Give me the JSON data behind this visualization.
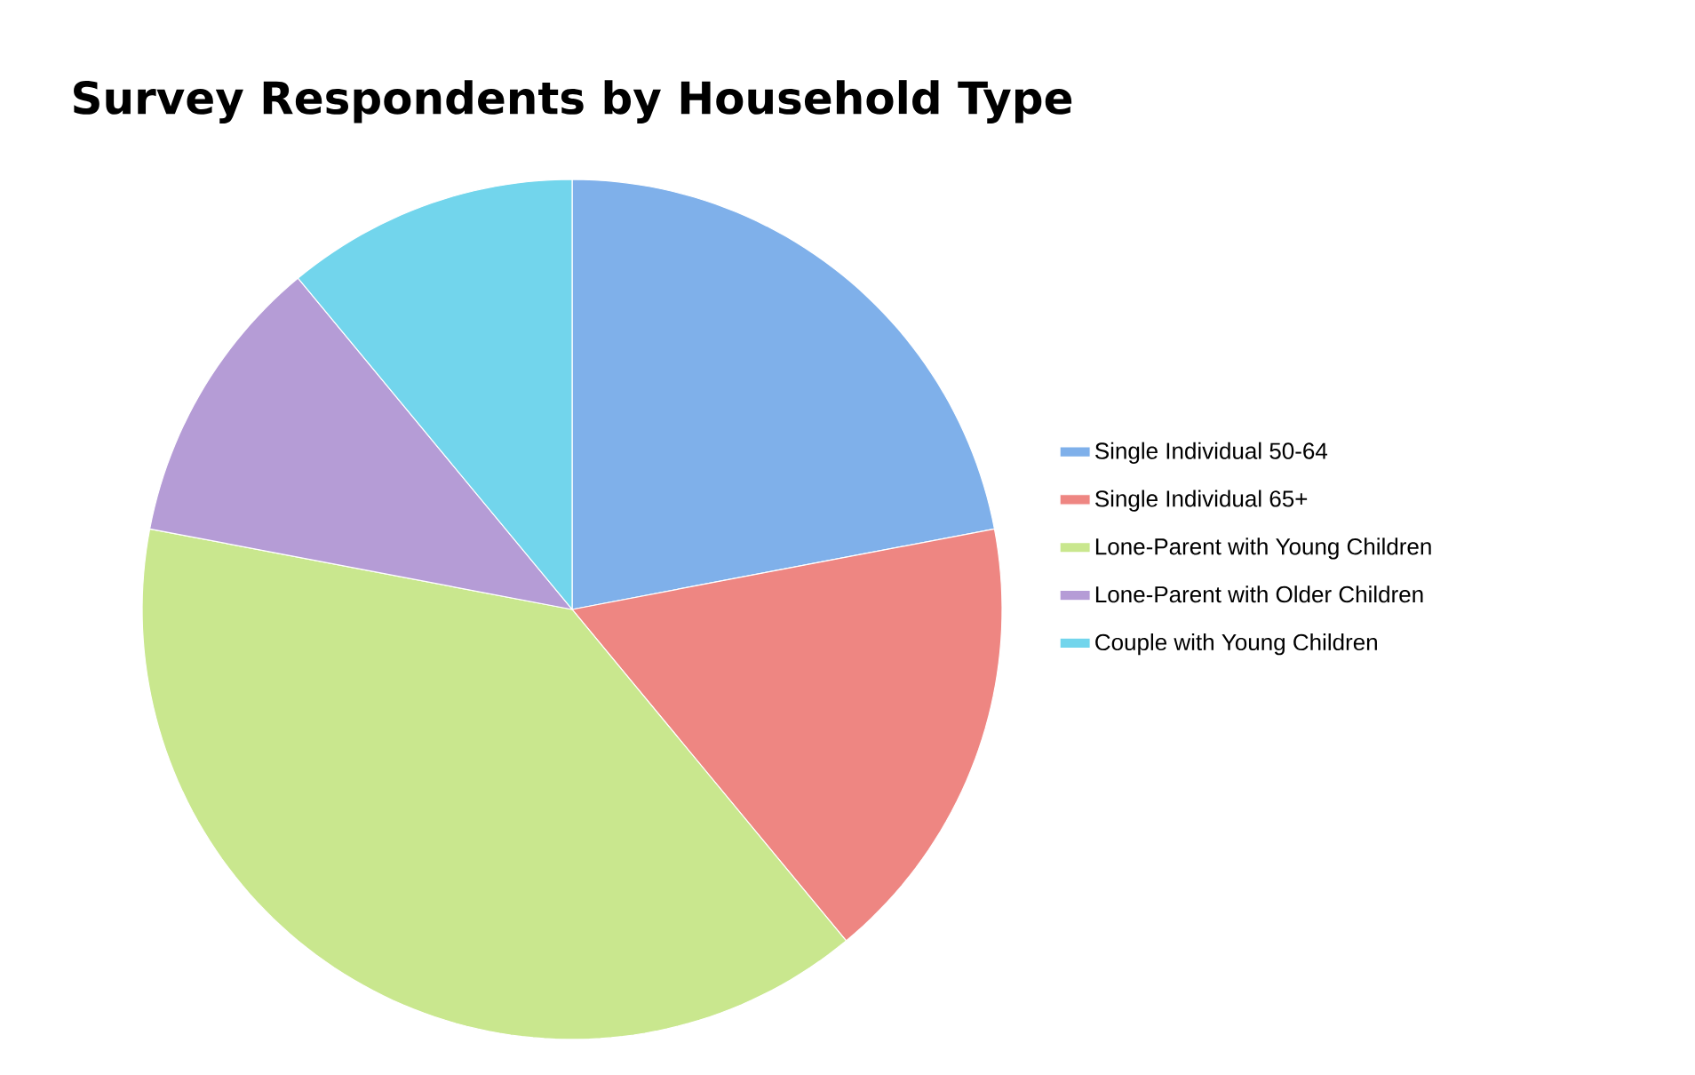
{
  "chart_data": {
    "type": "pie",
    "title": "Survey Respondents by Household Type",
    "categories": [
      "Single Individual 50-64",
      "Single Individual 65+",
      "Lone-Parent with Young Children",
      "Lone-Parent with Older Children",
      "Couple with Young Children"
    ],
    "values": [
      22,
      17,
      39,
      11,
      11
    ],
    "colors": [
      "#7fb0ea",
      "#ee8682",
      "#c9e78e",
      "#b59cd6",
      "#72d5ec"
    ],
    "legend": "right"
  }
}
